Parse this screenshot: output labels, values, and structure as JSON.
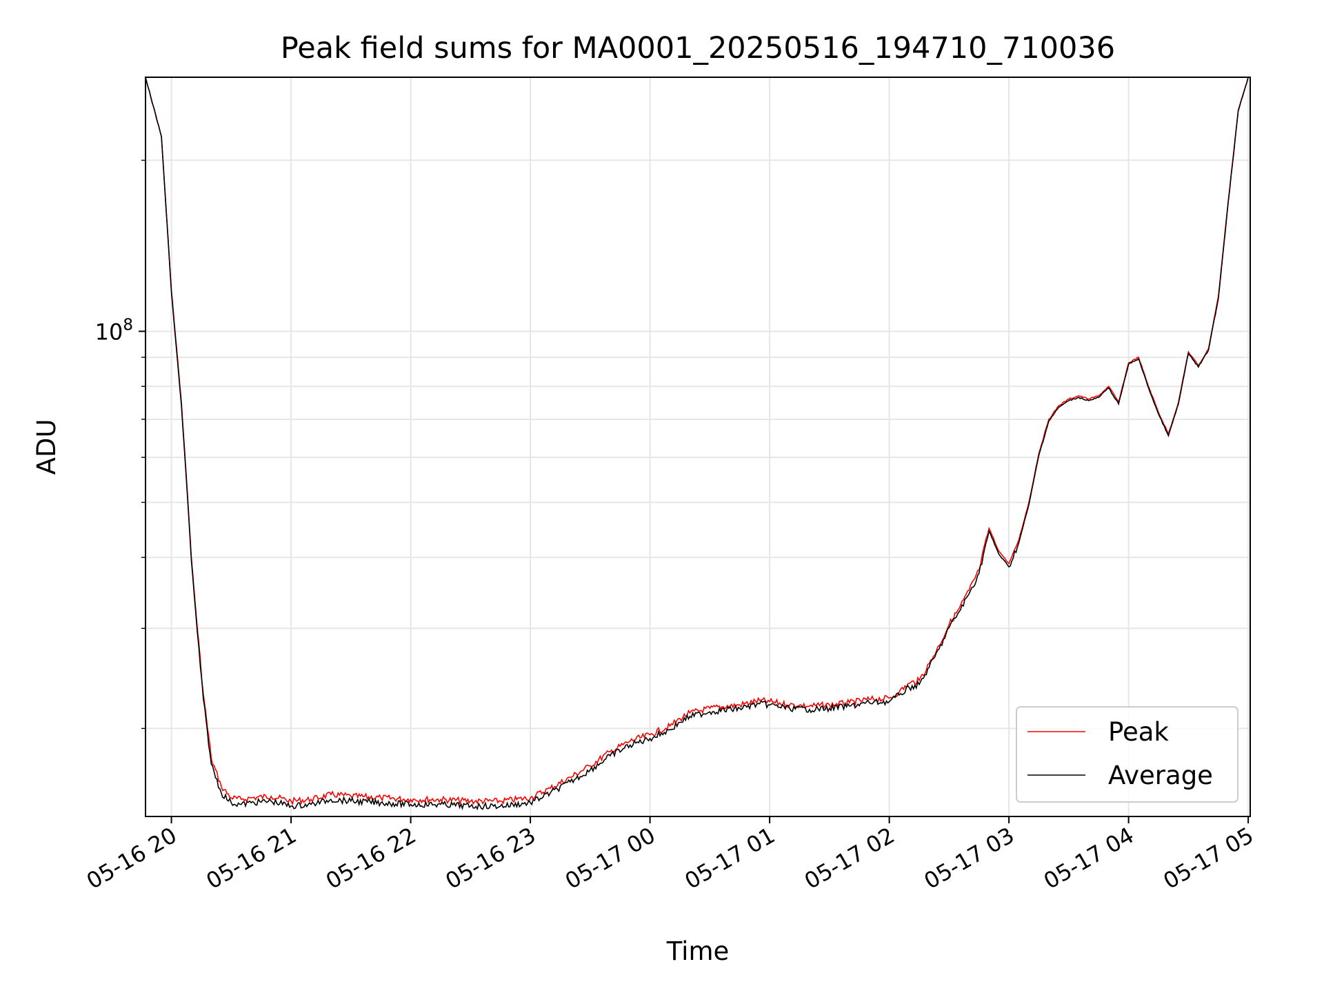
{
  "chart_data": {
    "type": "line",
    "title": "Peak field sums for MA0001_20250516_194710_710036",
    "xlabel": "Time",
    "ylabel": "ADU",
    "yscale": "log",
    "grid": true,
    "legend_position": "lower right",
    "x_ticks": [
      "05-16 20",
      "05-16 21",
      "05-16 22",
      "05-16 23",
      "05-17 00",
      "05-17 01",
      "05-17 02",
      "05-17 03",
      "05-17 04",
      "05-17 05"
    ],
    "y_tick_labels": [
      {
        "base": "10",
        "exp": "8",
        "value": 100000000
      }
    ],
    "xlim": [
      "2025-05-16 19:47",
      "2025-05-17 05:01"
    ],
    "ylim": [
      14000000,
      280000000
    ],
    "series": [
      {
        "name": "Peak",
        "color": "#ff0000",
        "x": [
          "2025-05-16 19:47",
          "2025-05-16 19:55",
          "2025-05-16 20:00",
          "2025-05-16 20:05",
          "2025-05-16 20:08",
          "2025-05-16 20:10",
          "2025-05-16 20:13",
          "2025-05-16 20:16",
          "2025-05-16 20:20",
          "2025-05-16 20:25",
          "2025-05-16 20:30",
          "2025-05-16 20:35",
          "2025-05-16 20:40",
          "2025-05-16 20:50",
          "2025-05-16 21:00",
          "2025-05-16 21:10",
          "2025-05-16 21:20",
          "2025-05-16 21:30",
          "2025-05-16 21:45",
          "2025-05-16 22:00",
          "2025-05-16 22:15",
          "2025-05-16 22:30",
          "2025-05-16 22:45",
          "2025-05-16 23:00",
          "2025-05-16 23:10",
          "2025-05-16 23:20",
          "2025-05-16 23:30",
          "2025-05-16 23:40",
          "2025-05-16 23:50",
          "2025-05-17 00:00",
          "2025-05-17 00:10",
          "2025-05-17 00:15",
          "2025-05-17 00:20",
          "2025-05-17 00:30",
          "2025-05-17 00:45",
          "2025-05-17 00:55",
          "2025-05-17 01:00",
          "2025-05-17 01:10",
          "2025-05-17 01:20",
          "2025-05-17 01:30",
          "2025-05-17 01:40",
          "2025-05-17 01:50",
          "2025-05-17 02:00",
          "2025-05-17 02:05",
          "2025-05-17 02:10",
          "2025-05-17 02:15",
          "2025-05-17 02:20",
          "2025-05-17 02:25",
          "2025-05-17 02:30",
          "2025-05-17 02:35",
          "2025-05-17 02:40",
          "2025-05-17 02:45",
          "2025-05-17 02:50",
          "2025-05-17 02:55",
          "2025-05-17 03:00",
          "2025-05-17 03:05",
          "2025-05-17 03:10",
          "2025-05-17 03:15",
          "2025-05-17 03:20",
          "2025-05-17 03:25",
          "2025-05-17 03:30",
          "2025-05-17 03:35",
          "2025-05-17 03:40",
          "2025-05-17 03:45",
          "2025-05-17 03:50",
          "2025-05-17 03:55",
          "2025-05-17 04:00",
          "2025-05-17 04:05",
          "2025-05-17 04:10",
          "2025-05-17 04:15",
          "2025-05-17 04:20",
          "2025-05-17 04:25",
          "2025-05-17 04:30",
          "2025-05-17 04:35",
          "2025-05-17 04:40",
          "2025-05-17 04:45",
          "2025-05-17 04:50",
          "2025-05-17 04:55",
          "2025-05-17 05:00"
        ],
        "values": [
          280000000,
          220000000,
          118000000,
          75000000,
          52000000,
          40000000,
          30000000,
          23000000,
          17700000,
          15800000,
          15100000,
          15000000,
          15100000,
          15200000,
          14900000,
          15000000,
          15300000,
          15200000,
          15100000,
          15000000,
          15000000,
          14900000,
          14900000,
          15100000,
          15700000,
          16400000,
          17200000,
          18200000,
          19000000,
          19500000,
          20200000,
          20800000,
          21300000,
          21700000,
          22000000,
          22400000,
          22300000,
          22000000,
          21900000,
          22000000,
          22200000,
          22500000,
          22600000,
          23200000,
          24000000,
          24300000,
          26000000,
          28000000,
          30500000,
          32500000,
          35000000,
          38000000,
          45000000,
          41000000,
          39000000,
          43000000,
          50000000,
          61000000,
          70000000,
          74000000,
          76000000,
          77000000,
          76000000,
          77000000,
          80000000,
          75000000,
          88000000,
          90000000,
          80000000,
          72000000,
          66000000,
          75000000,
          92000000,
          87000000,
          93000000,
          115000000,
          170000000,
          245000000,
          280000000
        ]
      },
      {
        "name": "Average",
        "color": "#000000",
        "x": [
          "2025-05-16 19:47",
          "2025-05-16 19:55",
          "2025-05-16 20:00",
          "2025-05-16 20:05",
          "2025-05-16 20:08",
          "2025-05-16 20:10",
          "2025-05-16 20:13",
          "2025-05-16 20:16",
          "2025-05-16 20:20",
          "2025-05-16 20:25",
          "2025-05-16 20:30",
          "2025-05-16 20:35",
          "2025-05-16 20:40",
          "2025-05-16 20:50",
          "2025-05-16 21:00",
          "2025-05-16 21:10",
          "2025-05-16 21:20",
          "2025-05-16 21:30",
          "2025-05-16 21:45",
          "2025-05-16 22:00",
          "2025-05-16 22:15",
          "2025-05-16 22:30",
          "2025-05-16 22:45",
          "2025-05-16 23:00",
          "2025-05-16 23:10",
          "2025-05-16 23:20",
          "2025-05-16 23:30",
          "2025-05-16 23:40",
          "2025-05-16 23:50",
          "2025-05-17 00:00",
          "2025-05-17 00:10",
          "2025-05-17 00:15",
          "2025-05-17 00:20",
          "2025-05-17 00:30",
          "2025-05-17 00:45",
          "2025-05-17 00:55",
          "2025-05-17 01:00",
          "2025-05-17 01:10",
          "2025-05-17 01:20",
          "2025-05-17 01:30",
          "2025-05-17 01:40",
          "2025-05-17 01:50",
          "2025-05-17 02:00",
          "2025-05-17 02:05",
          "2025-05-17 02:10",
          "2025-05-17 02:15",
          "2025-05-17 02:20",
          "2025-05-17 02:25",
          "2025-05-17 02:30",
          "2025-05-17 02:35",
          "2025-05-17 02:40",
          "2025-05-17 02:45",
          "2025-05-17 02:50",
          "2025-05-17 02:55",
          "2025-05-17 03:00",
          "2025-05-17 03:05",
          "2025-05-17 03:10",
          "2025-05-17 03:15",
          "2025-05-17 03:20",
          "2025-05-17 03:25",
          "2025-05-17 03:30",
          "2025-05-17 03:35",
          "2025-05-17 03:40",
          "2025-05-17 03:45",
          "2025-05-17 03:50",
          "2025-05-17 03:55",
          "2025-05-17 04:00",
          "2025-05-17 04:05",
          "2025-05-17 04:10",
          "2025-05-17 04:15",
          "2025-05-17 04:20",
          "2025-05-17 04:25",
          "2025-05-17 04:30",
          "2025-05-17 04:35",
          "2025-05-17 04:40",
          "2025-05-17 04:45",
          "2025-05-17 04:50",
          "2025-05-17 04:55",
          "2025-05-17 05:00"
        ],
        "values": [
          280000000,
          220000000,
          117000000,
          74000000,
          51500000,
          39500000,
          29500000,
          22500000,
          17300000,
          15400000,
          14800000,
          14700000,
          14800000,
          14900000,
          14600000,
          14700000,
          15000000,
          14900000,
          14800000,
          14700000,
          14700000,
          14600000,
          14600000,
          14800000,
          15400000,
          16100000,
          16900000,
          17900000,
          18700000,
          19200000,
          19900000,
          20500000,
          21000000,
          21400000,
          21700000,
          22100000,
          22000000,
          21700000,
          21600000,
          21700000,
          21900000,
          22200000,
          22300000,
          22900000,
          23600000,
          23900000,
          25600000,
          27600000,
          30100000,
          32100000,
          34500000,
          37500000,
          44500000,
          40500000,
          38500000,
          42500000,
          49500000,
          60500000,
          69500000,
          73500000,
          75500000,
          76500000,
          75500000,
          76500000,
          79500000,
          74500000,
          87500000,
          89500000,
          79500000,
          71500000,
          65500000,
          74500000,
          91500000,
          86500000,
          92500000,
          114000000,
          169000000,
          244000000,
          280000000
        ]
      }
    ]
  }
}
